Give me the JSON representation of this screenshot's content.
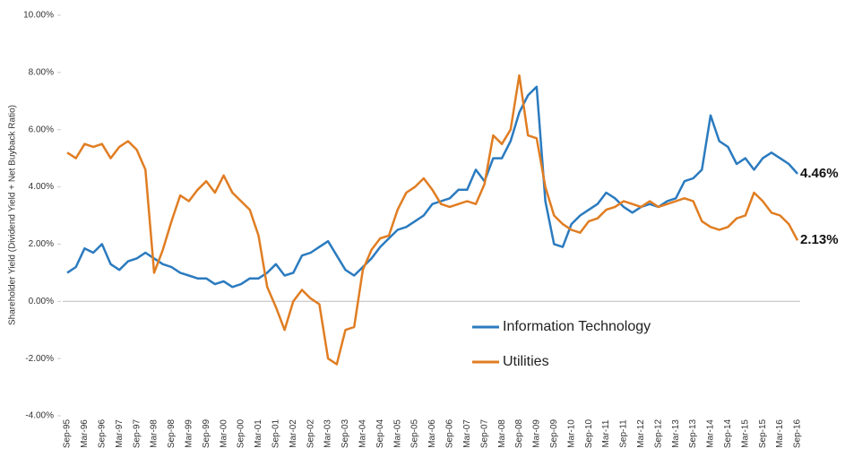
{
  "chart_data": {
    "type": "line",
    "y_label": "Shareholder Yield (Dividend Yield + Net Buyback Ratio)",
    "categories": [
      "Sep-95",
      null,
      "Mar-96",
      null,
      "Sep-96",
      null,
      "Mar-97",
      null,
      "Sep-97",
      null,
      "Mar-98",
      null,
      "Sep-98",
      null,
      "Mar-99",
      null,
      "Sep-99",
      null,
      "Mar-00",
      null,
      "Sep-00",
      null,
      "Mar-01",
      null,
      "Sep-01",
      null,
      "Mar-02",
      null,
      "Sep-02",
      null,
      "Mar-03",
      null,
      "Sep-03",
      null,
      "Mar-04",
      null,
      "Sep-04",
      null,
      "Mar-05",
      null,
      "Sep-05",
      null,
      "Mar-06",
      null,
      "Sep-06",
      null,
      "Mar-07",
      null,
      "Sep-07",
      null,
      "Mar-08",
      null,
      "Sep-08",
      null,
      "Mar-09",
      null,
      "Sep-09",
      null,
      "Mar-10",
      null,
      "Sep-10",
      null,
      "Mar-11",
      null,
      "Sep-11",
      null,
      "Mar-12",
      null,
      "Sep-12",
      null,
      "Mar-13",
      null,
      "Sep-13",
      null,
      "Mar-14",
      null,
      "Sep-14",
      null,
      "Mar-15",
      null,
      "Sep-15",
      null,
      "Mar-16",
      null,
      "Sep-16"
    ],
    "series": [
      {
        "name": "Information Technology",
        "color": "#2b7bbf",
        "values": [
          1.0,
          1.2,
          1.85,
          1.7,
          2.0,
          1.3,
          1.1,
          1.4,
          1.5,
          1.7,
          1.5,
          1.3,
          1.2,
          1.0,
          0.9,
          0.8,
          0.8,
          0.6,
          0.7,
          0.5,
          0.6,
          0.8,
          0.8,
          1.0,
          1.3,
          0.9,
          1.0,
          1.6,
          1.7,
          1.9,
          2.1,
          1.6,
          1.1,
          0.9,
          1.2,
          1.5,
          1.9,
          2.2,
          2.5,
          2.6,
          2.8,
          3.0,
          3.4,
          3.5,
          3.6,
          3.9,
          3.9,
          4.6,
          4.2,
          5.0,
          5.0,
          5.6,
          6.6,
          7.2,
          7.5,
          3.5,
          2.0,
          1.9,
          2.7,
          3.0,
          3.2,
          3.4,
          3.8,
          3.6,
          3.3,
          3.1,
          3.3,
          3.4,
          3.3,
          3.5,
          3.6,
          4.2,
          4.3,
          4.6,
          6.5,
          5.6,
          5.4,
          4.8,
          5.0,
          4.6,
          5.0,
          5.2,
          5.0,
          4.8,
          4.46
        ],
        "value_labels": [
          null,
          null,
          null,
          null,
          null,
          null,
          null,
          null,
          null,
          null,
          null,
          null,
          null,
          null,
          null,
          null,
          null,
          null,
          null,
          null,
          null,
          null,
          null,
          null,
          null,
          null,
          null,
          null,
          null,
          null,
          null,
          null,
          null,
          null,
          null,
          null,
          null,
          null,
          null,
          null,
          null,
          null,
          null,
          null,
          null,
          null,
          null,
          null,
          null,
          null,
          null,
          null,
          null,
          null,
          null,
          null,
          null,
          null,
          null,
          null,
          null,
          null,
          null,
          null,
          null,
          null,
          null,
          null,
          null,
          null,
          null,
          null,
          null,
          null,
          null,
          null,
          null,
          null,
          null,
          null,
          null,
          null,
          null,
          null,
          "4.46%"
        ]
      },
      {
        "name": "Utilities",
        "color": "#e07d22",
        "values": [
          5.2,
          5.0,
          5.5,
          5.4,
          5.5,
          5.0,
          5.4,
          5.6,
          5.3,
          4.6,
          1.0,
          1.8,
          2.8,
          3.7,
          3.5,
          3.9,
          4.2,
          3.8,
          4.4,
          3.8,
          3.5,
          3.2,
          2.3,
          0.5,
          -0.2,
          -1.0,
          0.0,
          0.4,
          0.1,
          -0.1,
          -2.0,
          -2.2,
          -1.0,
          -0.9,
          1.1,
          1.8,
          2.2,
          2.3,
          3.2,
          3.8,
          4.0,
          4.3,
          3.9,
          3.4,
          3.3,
          3.4,
          3.5,
          3.4,
          4.1,
          5.8,
          5.5,
          6.0,
          7.9,
          5.8,
          5.7,
          4.0,
          3.0,
          2.7,
          2.5,
          2.4,
          2.8,
          2.9,
          3.2,
          3.3,
          3.5,
          3.4,
          3.3,
          3.5,
          3.3,
          3.4,
          3.5,
          3.6,
          3.5,
          2.8,
          2.6,
          2.5,
          2.6,
          2.9,
          3.0,
          3.8,
          3.5,
          3.1,
          3.0,
          2.7,
          2.13
        ],
        "value_labels": [
          null,
          null,
          null,
          null,
          null,
          null,
          null,
          null,
          null,
          null,
          null,
          null,
          null,
          null,
          null,
          null,
          null,
          null,
          null,
          null,
          null,
          null,
          null,
          null,
          null,
          null,
          null,
          null,
          null,
          null,
          null,
          null,
          null,
          null,
          null,
          null,
          null,
          null,
          null,
          null,
          null,
          null,
          null,
          null,
          null,
          null,
          null,
          null,
          null,
          null,
          null,
          null,
          null,
          null,
          null,
          null,
          null,
          null,
          null,
          null,
          null,
          null,
          null,
          null,
          null,
          null,
          null,
          null,
          null,
          null,
          null,
          null,
          null,
          null,
          null,
          null,
          null,
          null,
          null,
          null,
          null,
          null,
          null,
          null,
          "2.13%"
        ]
      }
    ],
    "ylim": [
      -4,
      10
    ],
    "yticks": [
      {
        "value": -4,
        "label": "-4.00%"
      },
      {
        "value": -2,
        "label": "-2.00%"
      },
      {
        "value": 0,
        "label": "0.00%"
      },
      {
        "value": 2,
        "label": "2.00%"
      },
      {
        "value": 4,
        "label": "4.00%"
      },
      {
        "value": 6,
        "label": "6.00%"
      },
      {
        "value": 8,
        "label": "8.00%"
      },
      {
        "value": 10,
        "label": "10.00%"
      }
    ],
    "grid": false
  }
}
